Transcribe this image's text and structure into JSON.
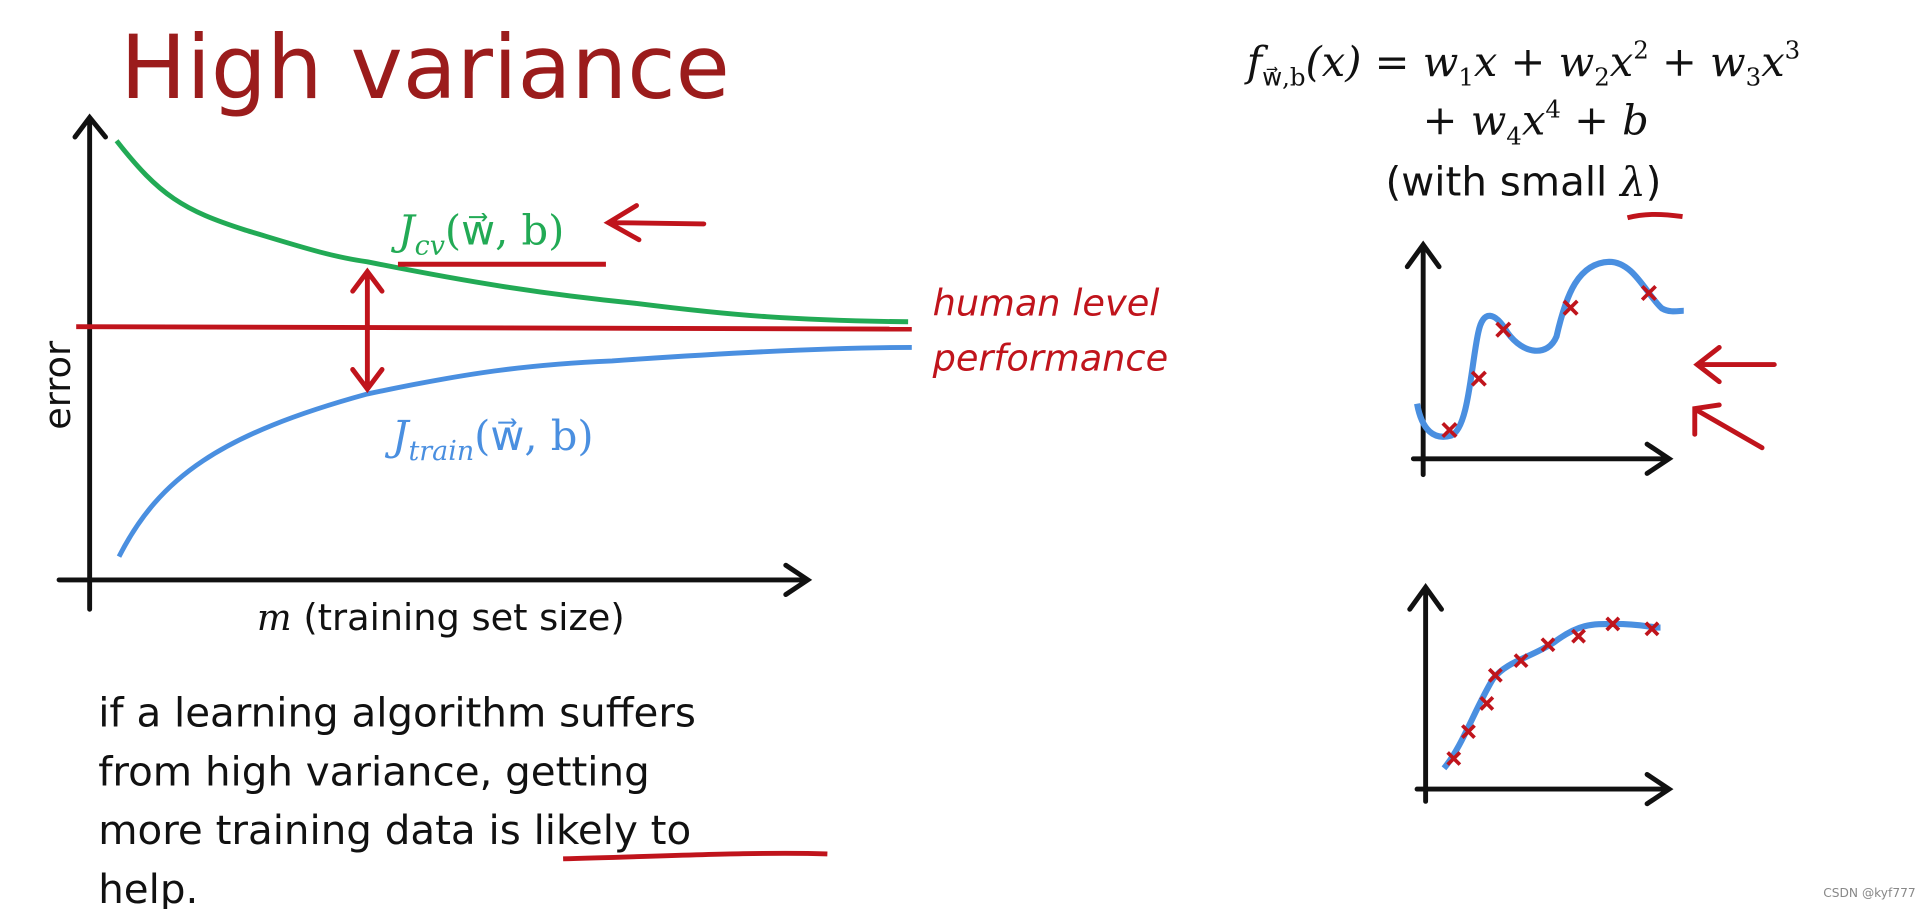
{
  "title": "High variance",
  "formula": {
    "line1": [
      "f",
      "w⃗,b",
      "(x) = w",
      "1",
      "x + w",
      "2",
      "x",
      "2",
      " + w",
      "3",
      "x",
      "3"
    ],
    "line2": [
      "+ w",
      "4",
      "x",
      "4",
      " + b"
    ],
    "note": [
      "(with small ",
      "λ",
      ")"
    ]
  },
  "learning_curve": {
    "y_label": "error",
    "x_label": [
      "m",
      " (training set size)"
    ],
    "cv_label": [
      "J",
      "cv",
      "(w⃗, b)"
    ],
    "train_label": [
      "J",
      "train",
      "(w⃗, b)"
    ],
    "reference_label": [
      "human level",
      "performance"
    ]
  },
  "body_text": [
    "if a learning algorithm suffers",
    "from high variance, getting",
    "more training data ",
    "is likely to",
    "help."
  ],
  "watermark": "CSDN @kyf777"
}
